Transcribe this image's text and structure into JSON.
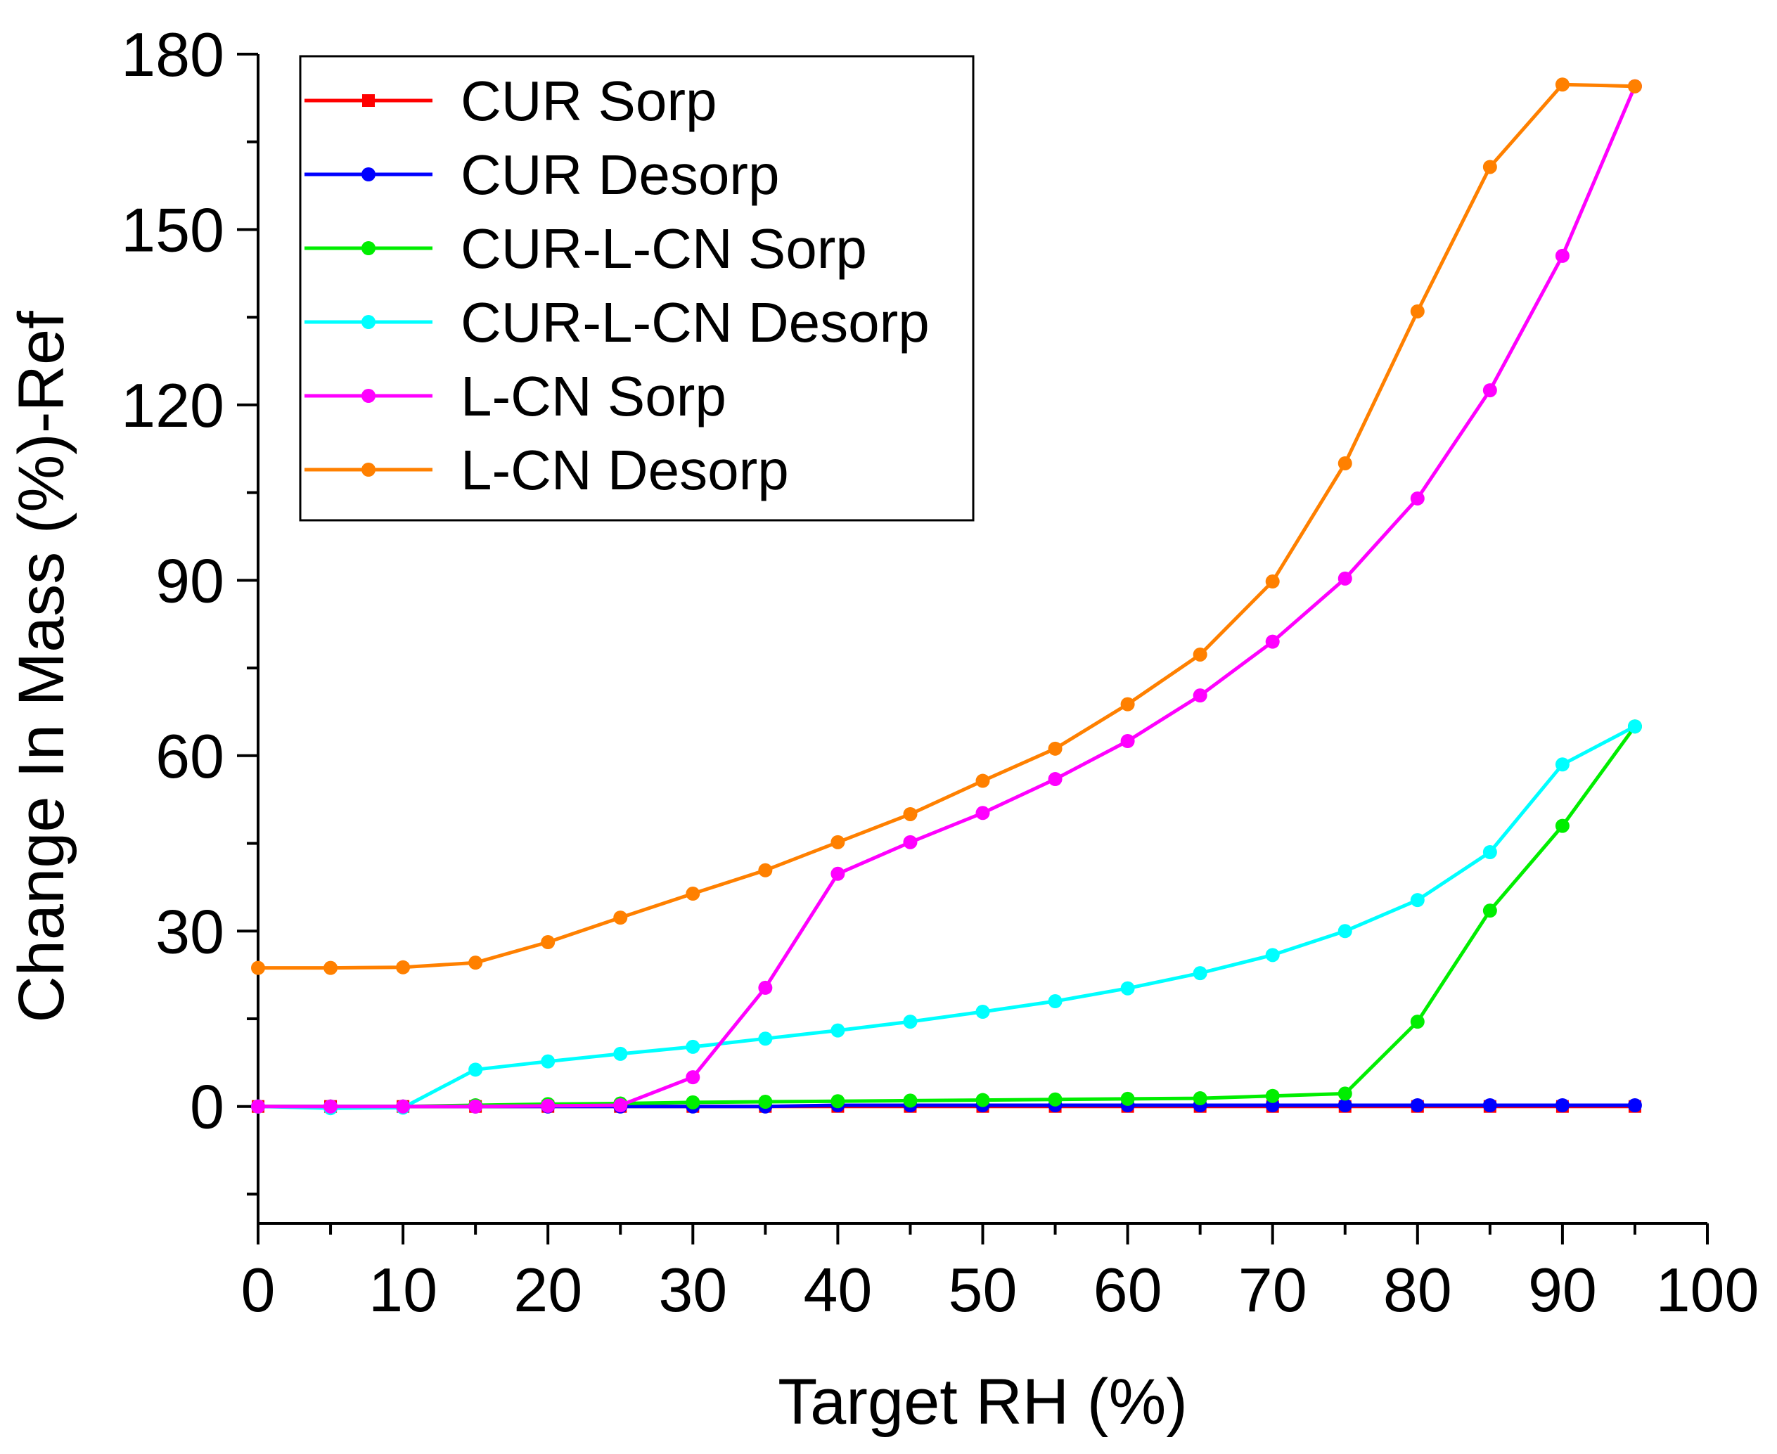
{
  "chart_data": {
    "type": "line",
    "title": "",
    "xlabel": "Target RH (%)",
    "ylabel": "Change In Mass (%)-Ref",
    "xlim": [
      0,
      100
    ],
    "ylim": [
      -20,
      180
    ],
    "x_ticks": [
      0,
      10,
      20,
      30,
      40,
      50,
      60,
      70,
      80,
      90,
      100
    ],
    "y_ticks": [
      0,
      30,
      60,
      90,
      120,
      150,
      180
    ],
    "x_minor_step": 5,
    "y_minor_step": 15,
    "legend_position": "top-left",
    "x": [
      0,
      5,
      10,
      15,
      20,
      25,
      30,
      35,
      40,
      45,
      50,
      55,
      60,
      65,
      70,
      75,
      80,
      85,
      90,
      95
    ],
    "series": [
      {
        "name": "CUR Sorp",
        "color": "#ff0000",
        "marker": "square",
        "x": [
          0,
          5,
          10,
          15,
          20,
          25,
          30,
          35,
          40,
          45,
          50,
          55,
          60,
          65,
          70,
          75,
          80,
          85,
          90,
          95
        ],
        "values": [
          0,
          0,
          0,
          0,
          0,
          0,
          0,
          0,
          0,
          0,
          0,
          0,
          0,
          0,
          0,
          0,
          0,
          0,
          0,
          0
        ]
      },
      {
        "name": "CUR Desorp",
        "color": "#0000ff",
        "marker": "circle",
        "x": [
          0,
          5,
          10,
          15,
          20,
          25,
          30,
          35,
          40,
          45,
          50,
          55,
          60,
          65,
          70,
          75,
          80,
          85,
          90,
          95
        ],
        "values": [
          0,
          0,
          0,
          0,
          0,
          0,
          0,
          0,
          0.2,
          0.2,
          0.2,
          0.2,
          0.2,
          0.2,
          0.2,
          0.2,
          0.2,
          0.2,
          0.2,
          0.2
        ]
      },
      {
        "name": "CUR-L-CN Sorp",
        "color": "#00ee00",
        "marker": "circle",
        "x": [
          0,
          5,
          10,
          15,
          20,
          25,
          30,
          35,
          40,
          45,
          50,
          55,
          60,
          65,
          70,
          75,
          80,
          85,
          90,
          95
        ],
        "values": [
          0,
          0,
          0,
          0.2,
          0.4,
          0.5,
          0.7,
          0.8,
          0.9,
          1.0,
          1.1,
          1.2,
          1.3,
          1.4,
          1.8,
          2.2,
          14.5,
          33.5,
          48,
          65
        ]
      },
      {
        "name": "CUR-L-CN Desorp",
        "color": "#00ffff",
        "marker": "circle",
        "x": [
          0,
          5,
          10,
          15,
          20,
          25,
          30,
          35,
          40,
          45,
          50,
          55,
          60,
          65,
          70,
          75,
          80,
          85,
          90,
          95
        ],
        "values": [
          0,
          -0.3,
          -0.2,
          6.3,
          7.7,
          9.0,
          10.2,
          11.6,
          13.0,
          14.5,
          16.2,
          18.0,
          20.2,
          22.8,
          25.9,
          30.0,
          35.3,
          43.5,
          58.5,
          65
        ]
      },
      {
        "name": "L-CN Sorp",
        "color": "#ff00ff",
        "marker": "circle",
        "x": [
          0,
          5,
          10,
          15,
          20,
          25,
          30,
          35,
          40,
          45,
          50,
          55,
          60,
          65,
          70,
          75,
          80,
          85,
          90,
          95
        ],
        "values": [
          0,
          0,
          0,
          0,
          0.1,
          0.2,
          5.0,
          20.3,
          39.8,
          45.2,
          50.2,
          56.0,
          62.5,
          70.3,
          79.5,
          90.3,
          104,
          122.5,
          145.5,
          174.5
        ]
      },
      {
        "name": "L-CN Desorp",
        "color": "#ff8000",
        "marker": "circle",
        "x": [
          0,
          5,
          10,
          15,
          20,
          25,
          30,
          35,
          40,
          45,
          50,
          55,
          60,
          65,
          70,
          75,
          80,
          85,
          90,
          95
        ],
        "values": [
          23.7,
          23.7,
          23.8,
          24.6,
          28.1,
          32.3,
          36.4,
          40.4,
          45.2,
          50.0,
          55.7,
          61.2,
          68.8,
          77.3,
          89.8,
          110,
          136,
          160.7,
          174.8,
          174.5
        ]
      }
    ]
  }
}
